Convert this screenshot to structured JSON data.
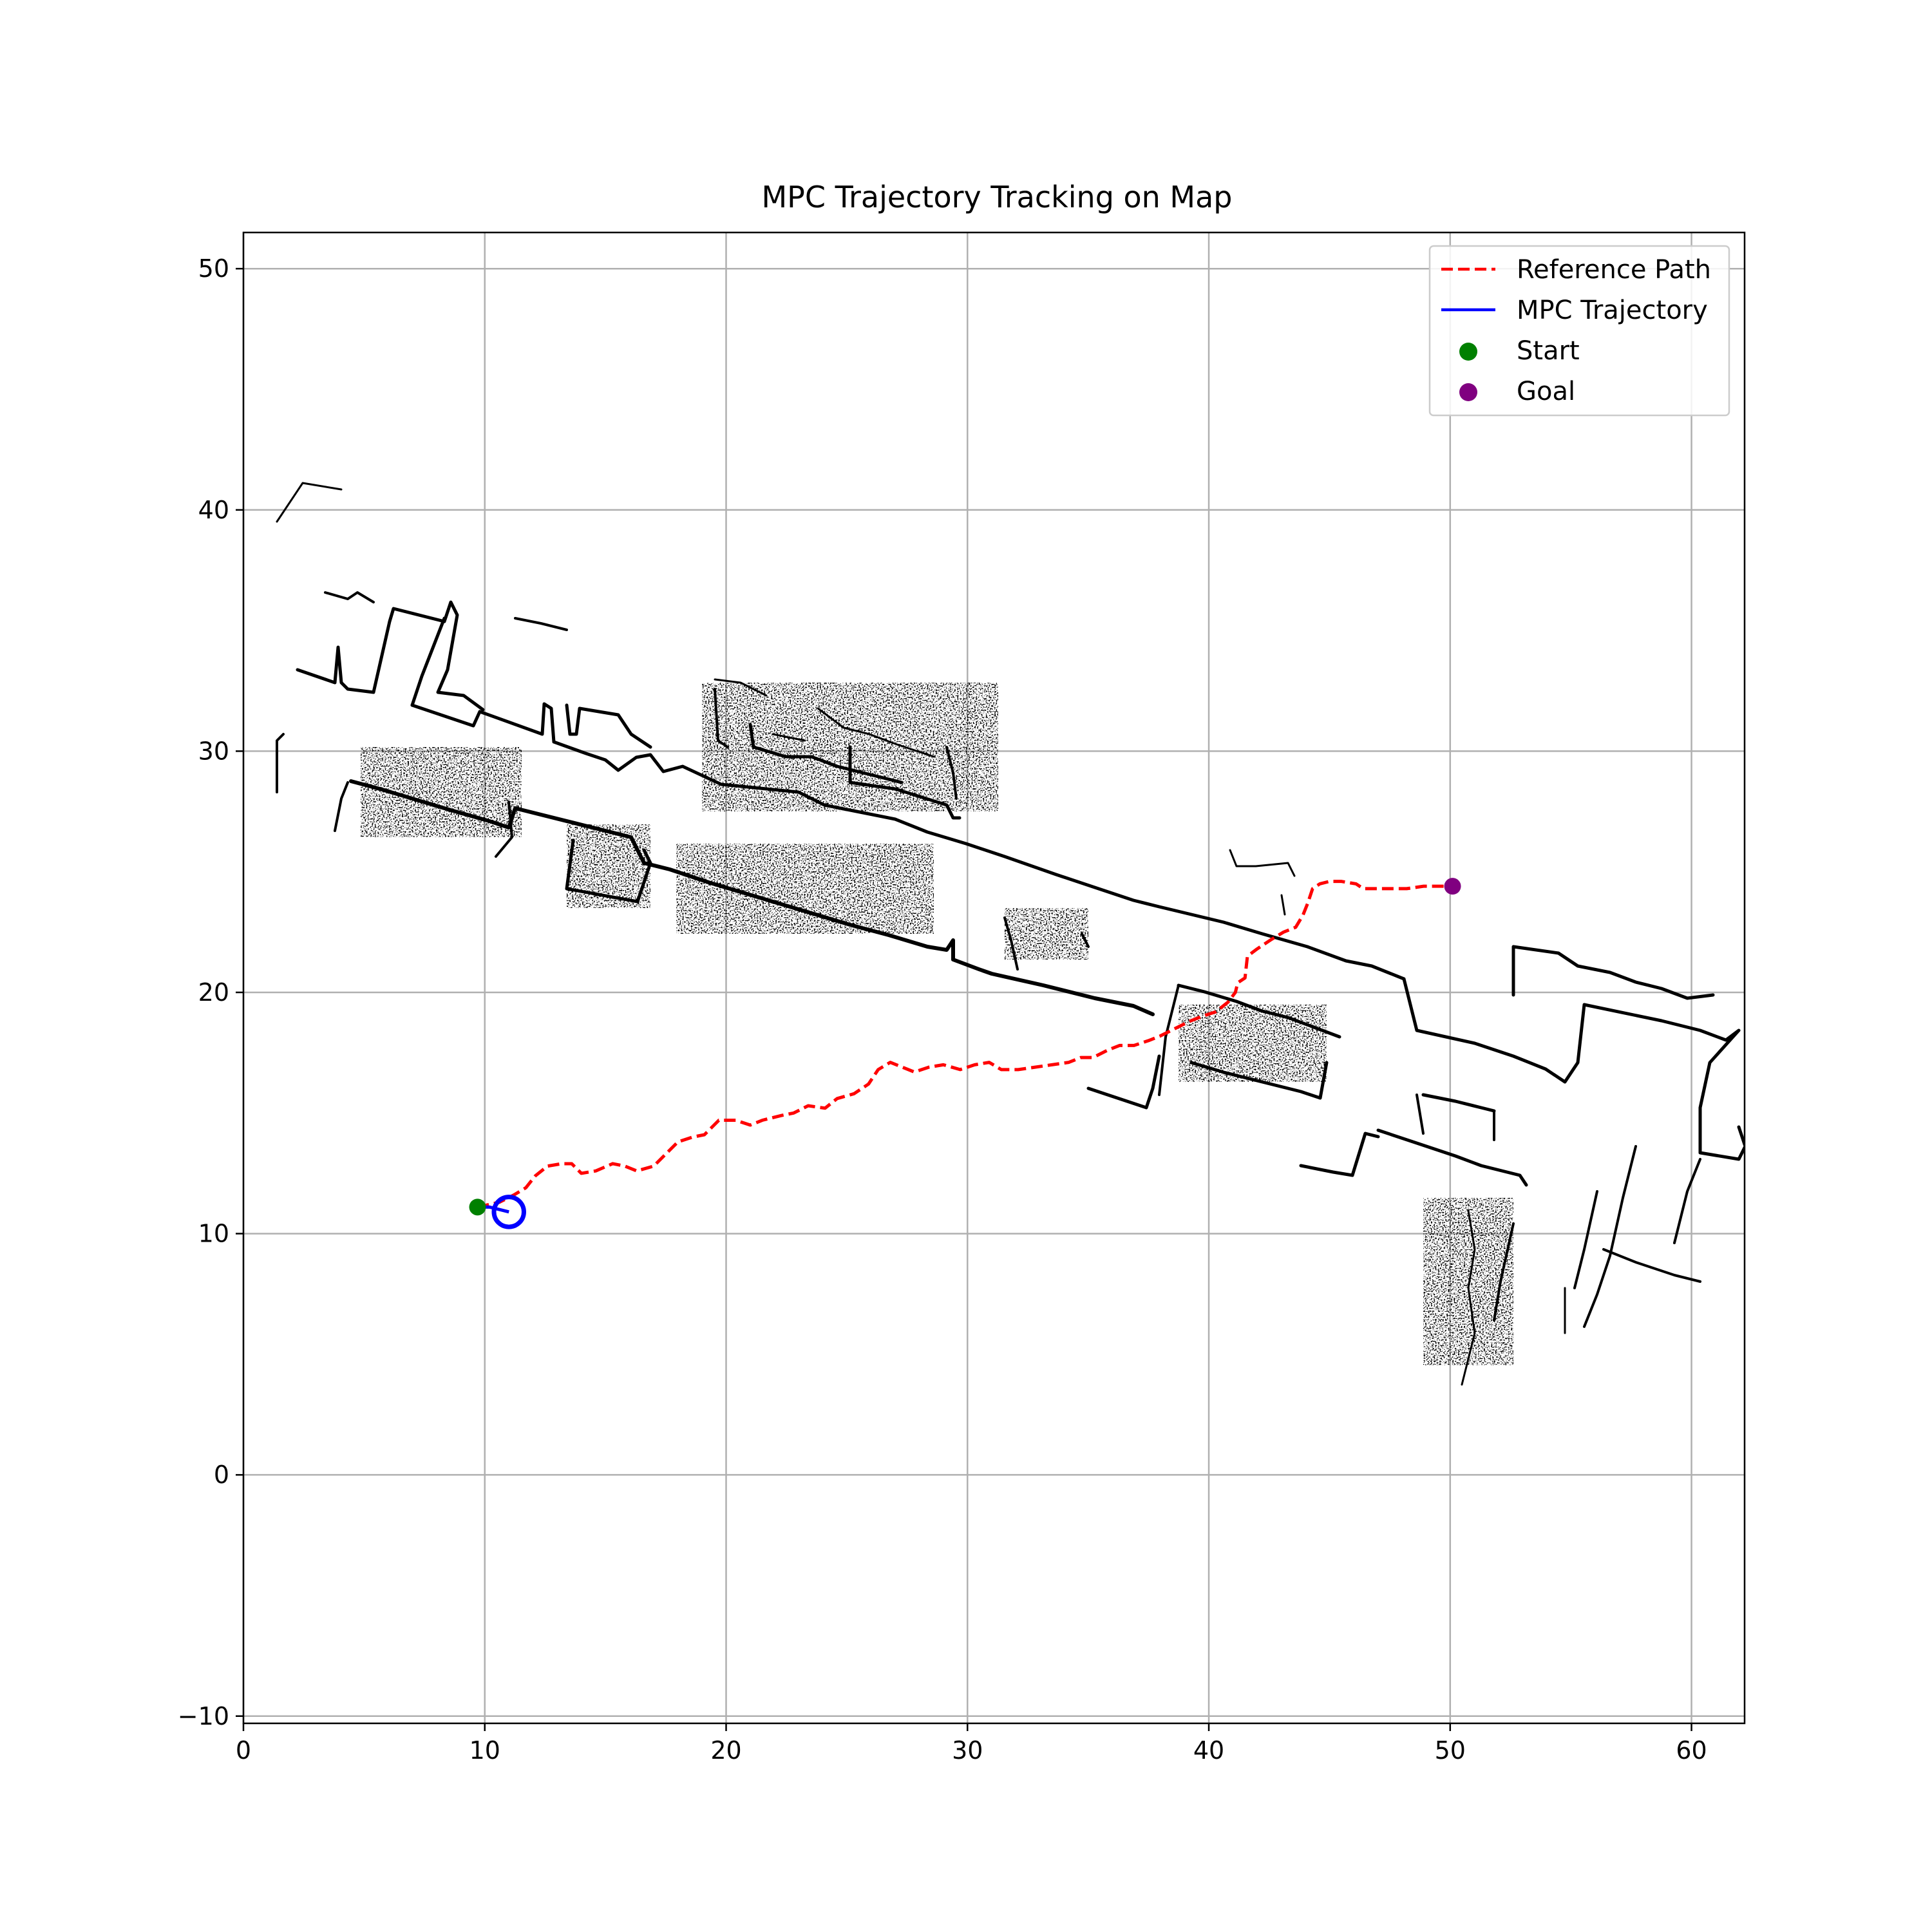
{
  "chart_data": {
    "type": "line",
    "title": "MPC Trajectory Tracking on Map",
    "xlabel": "",
    "ylabel": "",
    "xlim": [
      0,
      62.2
    ],
    "ylim": [
      -10.3,
      51.5
    ],
    "x_ticks": [
      0,
      10,
      20,
      30,
      40,
      50,
      60
    ],
    "y_ticks": [
      -10,
      0,
      10,
      20,
      30,
      40,
      50
    ],
    "x_tick_labels": [
      "0",
      "10",
      "20",
      "30",
      "40",
      "50",
      "60"
    ],
    "y_tick_labels": [
      "−10",
      "0",
      "10",
      "20",
      "30",
      "40",
      "50"
    ],
    "grid": true,
    "legend_position": "top-right",
    "colors": {
      "reference_path": "#ff0000",
      "mpc_trajectory": "#0000ff",
      "start": "#008000",
      "goal": "#800080",
      "map": "#000000",
      "grid": "#b0b0b0"
    },
    "series": [
      {
        "name": "Reference Path",
        "style": "dashed",
        "points": [
          [
            9.7,
            11.1
          ],
          [
            10.6,
            11.3
          ],
          [
            11.2,
            11.6
          ],
          [
            11.7,
            11.9
          ],
          [
            12.1,
            12.4
          ],
          [
            12.6,
            12.8
          ],
          [
            13.2,
            12.9
          ],
          [
            13.6,
            12.9
          ],
          [
            14.0,
            12.5
          ],
          [
            14.6,
            12.6
          ],
          [
            15.3,
            12.9
          ],
          [
            15.8,
            12.8
          ],
          [
            16.3,
            12.6
          ],
          [
            17.0,
            12.8
          ],
          [
            17.5,
            13.3
          ],
          [
            18.0,
            13.8
          ],
          [
            18.6,
            14.0
          ],
          [
            19.1,
            14.1
          ],
          [
            19.7,
            14.7
          ],
          [
            20.4,
            14.7
          ],
          [
            21.0,
            14.5
          ],
          [
            21.5,
            14.7
          ],
          [
            22.3,
            14.9
          ],
          [
            22.8,
            15.0
          ],
          [
            23.4,
            15.3
          ],
          [
            24.1,
            15.2
          ],
          [
            24.6,
            15.6
          ],
          [
            25.3,
            15.8
          ],
          [
            25.9,
            16.2
          ],
          [
            26.3,
            16.8
          ],
          [
            26.8,
            17.1
          ],
          [
            27.3,
            16.9
          ],
          [
            27.8,
            16.7
          ],
          [
            28.4,
            16.9
          ],
          [
            29.0,
            17.0
          ],
          [
            29.7,
            16.8
          ],
          [
            30.3,
            17.0
          ],
          [
            30.9,
            17.1
          ],
          [
            31.4,
            16.8
          ],
          [
            32.1,
            16.8
          ],
          [
            32.8,
            16.9
          ],
          [
            33.5,
            17.0
          ],
          [
            34.2,
            17.1
          ],
          [
            34.7,
            17.3
          ],
          [
            35.2,
            17.3
          ],
          [
            35.8,
            17.6
          ],
          [
            36.3,
            17.8
          ],
          [
            36.9,
            17.8
          ],
          [
            37.5,
            18.0
          ],
          [
            38.0,
            18.2
          ],
          [
            38.6,
            18.5
          ],
          [
            39.2,
            18.8
          ],
          [
            39.7,
            19.0
          ],
          [
            40.3,
            19.2
          ],
          [
            40.8,
            19.6
          ],
          [
            41.1,
            20.0
          ],
          [
            41.2,
            20.4
          ],
          [
            41.5,
            20.6
          ],
          [
            41.6,
            21.5
          ],
          [
            42.0,
            21.8
          ],
          [
            42.6,
            22.2
          ],
          [
            43.1,
            22.5
          ],
          [
            43.6,
            22.7
          ],
          [
            43.9,
            23.2
          ],
          [
            44.1,
            23.7
          ],
          [
            44.3,
            24.3
          ],
          [
            44.6,
            24.5
          ],
          [
            45.0,
            24.6
          ],
          [
            45.5,
            24.6
          ],
          [
            46.1,
            24.5
          ],
          [
            46.4,
            24.3
          ],
          [
            47.0,
            24.3
          ],
          [
            47.6,
            24.3
          ],
          [
            48.2,
            24.3
          ],
          [
            48.9,
            24.4
          ],
          [
            49.5,
            24.4
          ],
          [
            50.1,
            24.4
          ]
        ]
      },
      {
        "name": "MPC Trajectory",
        "style": "solid",
        "points": [
          [
            9.7,
            11.1
          ],
          [
            10.2,
            11.1
          ],
          [
            10.6,
            11.0
          ],
          [
            11.0,
            10.9
          ]
        ]
      }
    ],
    "markers": [
      {
        "name": "Start",
        "x": 9.7,
        "y": 11.1
      },
      {
        "name": "Goal",
        "x": 50.1,
        "y": 24.4
      }
    ],
    "robot": {
      "x": 11.0,
      "y": 10.9,
      "radius": 0.62
    },
    "legend": [
      "Reference Path",
      "MPC Trajectory",
      "Start",
      "Goal"
    ]
  }
}
